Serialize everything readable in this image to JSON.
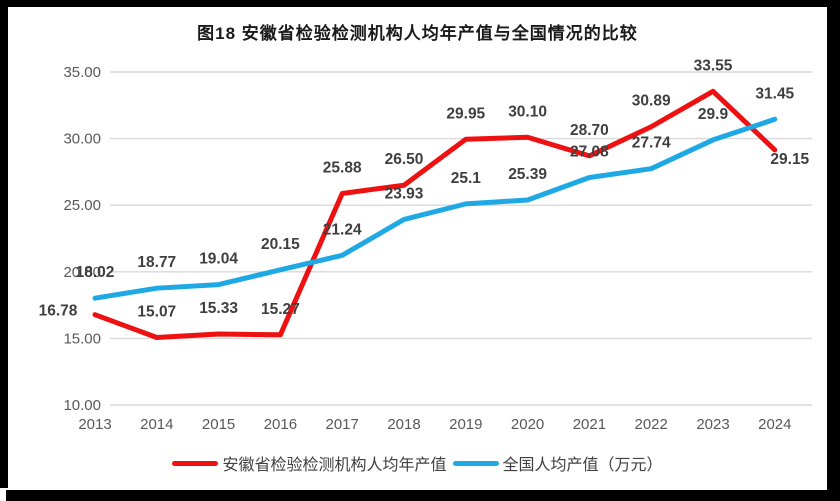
{
  "page": {
    "title": "图18 安徽省检验检测机构人均年产值与全国情况的比较"
  },
  "chart_data": {
    "type": "line",
    "title": "图18 安徽省检验检测机构人均年产值与全国情况的比较",
    "categories": [
      "2013",
      "2014",
      "2015",
      "2016",
      "2017",
      "2018",
      "2019",
      "2020",
      "2021",
      "2022",
      "2023",
      "2024"
    ],
    "series": [
      {
        "name": "安徽省检验检测机构人均年产值",
        "color": "#ee1111",
        "values": [
          16.78,
          15.07,
          15.33,
          15.27,
          25.88,
          26.5,
          29.95,
          30.1,
          28.7,
          30.89,
          33.55,
          29.15
        ],
        "labels": [
          "16.78",
          "15.07",
          "15.33",
          "15.27",
          "25.88",
          "26.50",
          "29.95",
          "30.10",
          "28.70",
          "30.89",
          "33.55",
          "29.15"
        ]
      },
      {
        "name": "全国人均产值（万元）",
        "color": "#1fa9e4",
        "values": [
          18.02,
          18.77,
          19.04,
          20.15,
          21.24,
          23.93,
          25.1,
          25.39,
          27.08,
          27.74,
          29.9,
          31.45
        ],
        "labels": [
          "18.02",
          "18.77",
          "19.04",
          "20.15",
          "21.24",
          "23.93",
          "25.1",
          "25.39",
          "27.08",
          "27.74",
          "29.9",
          "31.45"
        ]
      }
    ],
    "y_axis": {
      "ticks": [
        "35.00",
        "30.00",
        "25.00",
        "20.00",
        "15.00",
        "10.00"
      ],
      "tick_values": [
        35,
        30,
        25,
        20,
        15,
        10
      ],
      "min": 10,
      "max": 35
    },
    "grid": true,
    "legend_position": "bottom",
    "colors": {
      "gridline": "#d9d9d9",
      "axis_text": "#595959",
      "data_label_text": "#3f3f3f",
      "frame": "#000000"
    }
  }
}
